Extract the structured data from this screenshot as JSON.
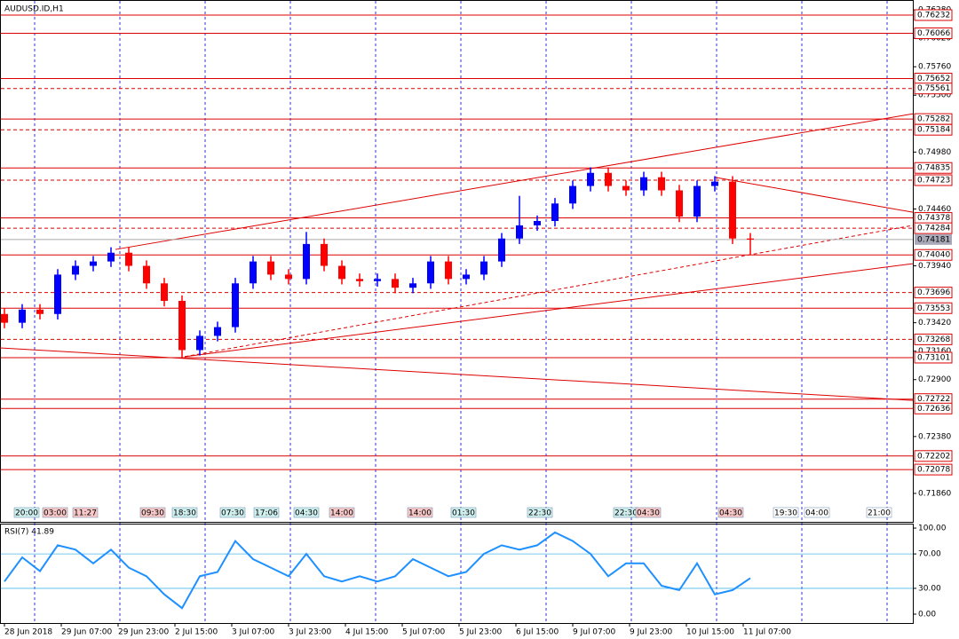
{
  "chart_data": [
    {
      "type": "candlestick",
      "title": "AUDUSD.ID,H1",
      "open": [
        0.735,
        0.7342,
        0.7354,
        0.735,
        0.7386,
        0.7394,
        0.7398,
        0.7406,
        0.7394,
        0.7378,
        0.7362,
        0.7317,
        0.733,
        0.7338,
        0.7378,
        0.7398,
        0.7386,
        0.7382,
        0.7414,
        0.7394,
        0.7382,
        0.738,
        0.7382,
        0.7374,
        0.7378,
        0.7398,
        0.7382,
        0.7386,
        0.7398,
        0.7419,
        0.7431,
        0.7435,
        0.7451,
        0.7467,
        0.7479,
        0.7467,
        0.7463,
        0.7475,
        0.7463,
        0.7439,
        0.7467,
        0.7471,
        0.7419
      ],
      "high": [
        0.7355,
        0.7359,
        0.7359,
        0.7391,
        0.7399,
        0.7403,
        0.7411,
        0.7411,
        0.7399,
        0.7383,
        0.7367,
        0.7335,
        0.7343,
        0.7383,
        0.7403,
        0.7403,
        0.7391,
        0.7425,
        0.7419,
        0.7399,
        0.7387,
        0.7387,
        0.7387,
        0.7383,
        0.7403,
        0.7403,
        0.7391,
        0.7403,
        0.7424,
        0.7458,
        0.744,
        0.7456,
        0.7472,
        0.7484,
        0.7484,
        0.7472,
        0.748,
        0.748,
        0.7468,
        0.7472,
        0.7476,
        0.7476,
        0.7424
      ],
      "low": [
        0.7337,
        0.7337,
        0.7345,
        0.7345,
        0.7381,
        0.7389,
        0.7393,
        0.7389,
        0.7373,
        0.7357,
        0.731,
        0.7312,
        0.7325,
        0.7333,
        0.7373,
        0.7381,
        0.7377,
        0.7377,
        0.7389,
        0.7377,
        0.7375,
        0.7375,
        0.7369,
        0.7369,
        0.7373,
        0.7377,
        0.7377,
        0.7381,
        0.7393,
        0.7414,
        0.7426,
        0.743,
        0.7446,
        0.7462,
        0.7462,
        0.7458,
        0.7458,
        0.7458,
        0.7434,
        0.7434,
        0.7462,
        0.7414,
        0.7404
      ],
      "close": [
        0.7342,
        0.7354,
        0.735,
        0.7386,
        0.7394,
        0.7398,
        0.7406,
        0.7394,
        0.7378,
        0.7362,
        0.7317,
        0.733,
        0.7338,
        0.7378,
        0.7398,
        0.7386,
        0.7382,
        0.7414,
        0.7394,
        0.7382,
        0.738,
        0.7382,
        0.7374,
        0.7378,
        0.7398,
        0.7382,
        0.7386,
        0.7398,
        0.7419,
        0.7431,
        0.7435,
        0.7451,
        0.7467,
        0.7479,
        0.7467,
        0.7463,
        0.7475,
        0.7463,
        0.7439,
        0.7467,
        0.7471,
        0.7419,
        0.7418
      ],
      "up_color": "#0000ff",
      "down_color": "#ff0000",
      "level_color": "#dd0000",
      "xlim": [
        -0.25,
        51.15
      ],
      "ylim": [
        0.716,
        0.7637
      ],
      "xticks": [
        {
          "value": 0,
          "label": "28 Jun 2018"
        },
        {
          "value": 3.2,
          "label": "29 Jun 07:00"
        },
        {
          "value": 6.4,
          "label": "29 Jun 23:00"
        },
        {
          "value": 9.6,
          "label": "2 Jul 15:00"
        },
        {
          "value": 12.8,
          "label": "3 Jul 07:00"
        },
        {
          "value": 16,
          "label": "3 Jul 23:00"
        },
        {
          "value": 19.2,
          "label": "4 Jul 15:00"
        },
        {
          "value": 22.4,
          "label": "5 Jul 07:00"
        },
        {
          "value": 25.6,
          "label": "5 Jul 23:00"
        },
        {
          "value": 28.8,
          "label": "6 Jul 15:00"
        },
        {
          "value": 32,
          "label": "9 Jul 07:00"
        },
        {
          "value": 35.2,
          "label": "9 Jul 23:00"
        },
        {
          "value": 38.4,
          "label": "10 Jul 15:00"
        },
        {
          "value": 41.6,
          "label": "11 Jul 07:00"
        }
      ],
      "xgrid": [
        1.7,
        6.5,
        11.3,
        16.1,
        20.9,
        25.7,
        30.5,
        35.3,
        40.1,
        44.9,
        49.7
      ],
      "yticks": [
        {
          "value": 0.7628,
          "label": "0.76280"
        },
        {
          "value": 0.7602,
          "label": "0.76020"
        },
        {
          "value": 0.7576,
          "label": "0.75760"
        },
        {
          "value": 0.755,
          "label": "0.75500"
        },
        {
          "value": 0.7498,
          "label": "0.74980"
        },
        {
          "value": 0.7446,
          "label": "0.74460"
        },
        {
          "value": 0.7394,
          "label": "0.73940"
        },
        {
          "value": 0.7342,
          "label": "0.73420"
        },
        {
          "value": 0.7316,
          "label": "0.73160"
        },
        {
          "value": 0.729,
          "label": "0.72900"
        },
        {
          "value": 0.7238,
          "label": "0.72380"
        },
        {
          "value": 0.7186,
          "label": "0.71860"
        }
      ],
      "levels": [
        {
          "value": 0.76232,
          "dashed": false
        },
        {
          "value": 0.76066,
          "dashed": false
        },
        {
          "value": 0.75652,
          "dashed": false
        },
        {
          "value": 0.75561,
          "dashed": true
        },
        {
          "value": 0.75282,
          "dashed": false
        },
        {
          "value": 0.75184,
          "dashed": true
        },
        {
          "value": 0.74835,
          "dashed": false
        },
        {
          "value": 0.74723,
          "dashed": true
        },
        {
          "value": 0.74378,
          "dashed": false
        },
        {
          "value": 0.74284,
          "dashed": true
        },
        {
          "value": 0.7404,
          "label": "0.74040",
          "dashed": false
        },
        {
          "value": 0.73696,
          "dashed": true
        },
        {
          "value": 0.73553,
          "dashed": false
        },
        {
          "value": 0.73268,
          "dashed": true
        },
        {
          "value": 0.73101,
          "dashed": false
        },
        {
          "value": 0.72722,
          "dashed": false
        },
        {
          "value": 0.72636,
          "dashed": false
        },
        {
          "value": 0.72202,
          "dashed": false
        },
        {
          "value": 0.72078,
          "dashed": false
        }
      ],
      "current_price": 0.74181,
      "trendlines": [
        {
          "start": [
            6.25,
            0.7409
          ],
          "end": [
            51.15,
            0.7533
          ],
          "dashed": false
        },
        {
          "start": [
            -0.25,
            0.7319
          ],
          "end": [
            51.15,
            0.7271
          ],
          "dashed": false
        },
        {
          "start": [
            10.15,
            0.7311
          ],
          "end": [
            51.15,
            0.7396
          ],
          "dashed": false
        },
        {
          "start": [
            10.15,
            0.7311
          ],
          "end": [
            51.15,
            0.7431
          ],
          "dashed": true
        },
        {
          "start": [
            40,
            0.7475
          ],
          "end": [
            51.15,
            0.7443
          ],
          "dashed": false
        }
      ],
      "time_markers": [
        {
          "x": 1.25,
          "label": "20:00",
          "color": "#d0f0f0"
        },
        {
          "x": 2.85,
          "label": "03:00",
          "color": "#f8c8c8"
        },
        {
          "x": 4.55,
          "label": "11:27",
          "color": "#f8c8c8"
        },
        {
          "x": 8.35,
          "label": "09:30",
          "color": "#f8c8c8"
        },
        {
          "x": 10.15,
          "label": "18:30",
          "color": "#d0f0f0"
        },
        {
          "x": 12.85,
          "label": "07:30",
          "color": "#d0f0f0"
        },
        {
          "x": 14.75,
          "label": "17:06",
          "color": "#d0f0f0"
        },
        {
          "x": 17,
          "label": "04:30",
          "color": "#d0f0f0"
        },
        {
          "x": 19,
          "label": "14:00",
          "color": "#f8c8c8"
        },
        {
          "x": 23.4,
          "label": "14:00",
          "color": "#f8c8c8"
        },
        {
          "x": 25.85,
          "label": "01:30",
          "color": "#d0f0f0"
        },
        {
          "x": 30.15,
          "label": "22:30",
          "color": "#d0f0f0"
        },
        {
          "x": 35,
          "label": "22:30",
          "color": "#d0f0f0"
        },
        {
          "x": 36.25,
          "label": "04:30",
          "color": "#f8c8c8"
        },
        {
          "x": 40.9,
          "label": "04:30",
          "color": "#f8c8c8"
        },
        {
          "x": 44,
          "label": "19:30",
          "color": "#ffffff"
        },
        {
          "x": 45.75,
          "label": "04:00",
          "color": "#ffffff"
        },
        {
          "x": 49.25,
          "label": "21:00",
          "color": "#ffffff"
        }
      ]
    },
    {
      "type": "line",
      "title": "RSI(7) 41.89",
      "color": "#1e90ff",
      "values": [
        38,
        66,
        50,
        80,
        75,
        59,
        75,
        54,
        44,
        23,
        7,
        44,
        49,
        85,
        64,
        54,
        44,
        70,
        44,
        38,
        44,
        38,
        44,
        64,
        54,
        44,
        49,
        70,
        80,
        75,
        80,
        95,
        85,
        70,
        44,
        59,
        59,
        33,
        28,
        59,
        23,
        28,
        41.89
      ],
      "xlim": [
        -0.25,
        51.15
      ],
      "ylim": [
        -10.3,
        105.2
      ],
      "yticks": [
        {
          "value": 100,
          "label": "100.00"
        },
        {
          "value": 70,
          "label": "70.00"
        },
        {
          "value": 30,
          "label": "30.00"
        },
        {
          "value": 0,
          "label": "0.00"
        }
      ],
      "levels": [
        70,
        30
      ]
    }
  ]
}
